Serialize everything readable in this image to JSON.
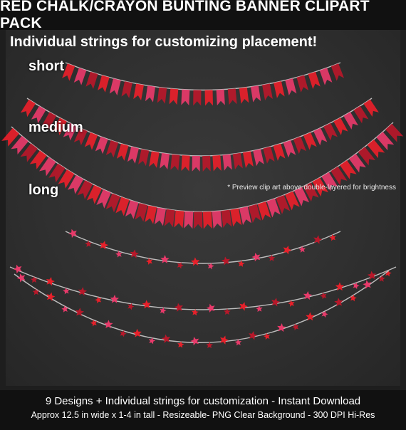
{
  "header": {
    "title": "RED CHALK/CRAYON BUNTING BANNER CLIPART PACK"
  },
  "preview": {
    "subtitle": "Individual strings for customizing placement!",
    "labels": {
      "short": "short",
      "medium": "medium",
      "long": "long"
    },
    "note": "* Preview clip art above double-layered for brightness",
    "colors": {
      "red": "#e8202a",
      "pink": "#e83a6a",
      "dark_red": "#b8182a",
      "string": "#bdbdbd"
    }
  },
  "footer": {
    "line1": "9 Designs + Individual strings for customization  -  Instant Download",
    "line2": "Approx 12.5 in wide x 1-4 in tall - Resizeable- PNG Clear Background - 300 DPI Hi-Res"
  }
}
